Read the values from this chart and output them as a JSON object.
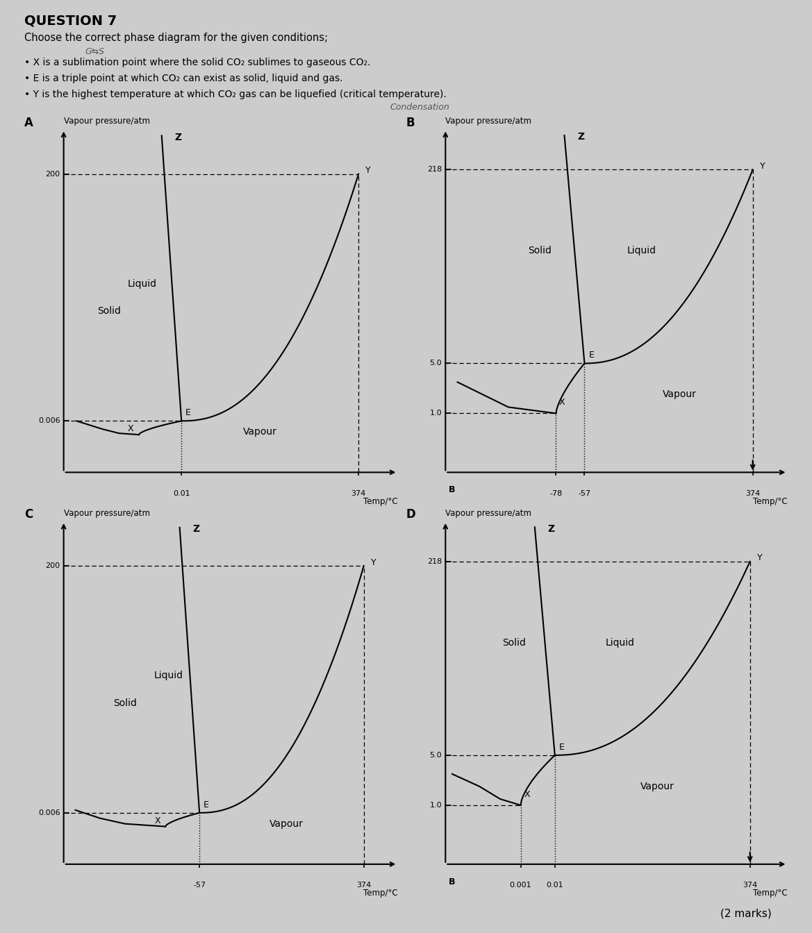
{
  "title": "QUESTION 7",
  "subtitle": "Choose the correct phase diagram for the given conditions;",
  "conditions": [
    "X is a sublimation point where the solid CO₂ sublimes to gaseous CO₂.",
    "E is a triple point at which CO₂ can exist as solid, liquid and gas.",
    "Y is the highest temperature at which CO₂ gas can be liquefied (critical temperature)."
  ],
  "bg_color": "#cccccc",
  "handwritten1": "G⇆S",
  "handwritten2": "Condensation",
  "marks": "(2 marks)"
}
